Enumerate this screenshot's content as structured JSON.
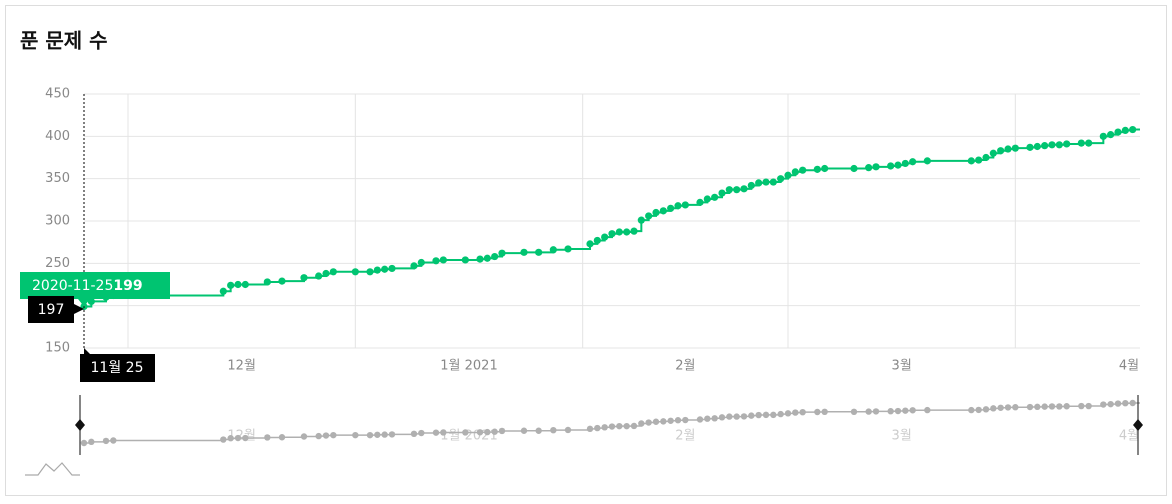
{
  "chart_data": {
    "type": "line",
    "title": "푼 문제 수",
    "x": [
      "2020-11-25",
      "2020-11-26",
      "2020-11-28",
      "2020-11-29",
      "2020-12-14",
      "2020-12-15",
      "2020-12-16",
      "2020-12-17",
      "2020-12-20",
      "2020-12-22",
      "2020-12-25",
      "2020-12-27",
      "2020-12-28",
      "2020-12-29",
      "2021-01-01",
      "2021-01-03",
      "2021-01-04",
      "2021-01-05",
      "2021-01-06",
      "2021-01-09",
      "2021-01-10",
      "2021-01-12",
      "2021-01-13",
      "2021-01-16",
      "2021-01-18",
      "2021-01-19",
      "2021-01-20",
      "2021-01-21",
      "2021-01-24",
      "2021-01-26",
      "2021-01-28",
      "2021-01-30",
      "2021-02-02",
      "2021-02-03",
      "2021-02-04",
      "2021-02-05",
      "2021-02-06",
      "2021-02-07",
      "2021-02-08",
      "2021-02-09",
      "2021-02-10",
      "2021-02-11",
      "2021-02-12",
      "2021-02-13",
      "2021-02-14",
      "2021-02-15",
      "2021-02-17",
      "2021-02-18",
      "2021-02-19",
      "2021-02-20",
      "2021-02-21",
      "2021-02-22",
      "2021-02-23",
      "2021-02-24",
      "2021-02-25",
      "2021-02-26",
      "2021-02-27",
      "2021-02-28",
      "2021-03-01",
      "2021-03-02",
      "2021-03-03",
      "2021-03-05",
      "2021-03-06",
      "2021-03-10",
      "2021-03-12",
      "2021-03-13",
      "2021-03-15",
      "2021-03-16",
      "2021-03-17",
      "2021-03-18",
      "2021-03-20",
      "2021-03-26",
      "2021-03-27",
      "2021-03-28",
      "2021-03-29",
      "2021-03-30",
      "2021-03-31",
      "2021-04-01",
      "2021-04-03",
      "2021-04-04",
      "2021-04-05",
      "2021-04-06",
      "2021-04-07",
      "2021-04-08",
      "2021-04-10",
      "2021-04-11",
      "2021-04-13",
      "2021-04-14",
      "2021-04-15",
      "2021-04-16",
      "2021-04-17"
    ],
    "series": [
      {
        "color": "#00c471",
        "values": [
          199,
          205,
          210,
          212,
          217,
          224,
          225,
          225,
          228,
          229,
          233,
          235,
          238,
          240,
          240,
          240,
          242,
          243,
          244,
          247,
          251,
          253,
          254,
          254,
          255,
          256,
          258,
          262,
          263,
          263,
          266,
          267,
          273,
          277,
          281,
          285,
          287,
          287,
          288,
          301,
          306,
          310,
          312,
          315,
          318,
          319,
          322,
          326,
          328,
          333,
          337,
          337,
          338,
          342,
          345,
          346,
          346,
          350,
          354,
          358,
          360,
          361,
          362,
          362,
          363,
          364,
          365,
          366,
          368,
          370,
          371,
          371,
          372,
          375,
          380,
          383,
          385,
          386,
          387,
          388,
          389,
          390,
          390,
          391,
          392,
          392,
          400,
          402,
          405,
          407,
          408
        ]
      }
    ],
    "xlim": [
      "2020-11-25",
      "2021-04-18"
    ],
    "xticks": [
      {
        "value": "2020-12-01",
        "label": "12월"
      },
      {
        "value": "2021-01-01",
        "label": "1월 2021"
      },
      {
        "value": "2021-02-01",
        "label": "2월"
      },
      {
        "value": "2021-03-01",
        "label": "3월"
      },
      {
        "value": "2021-04-01",
        "label": "4월"
      }
    ],
    "ylim": [
      150,
      450
    ],
    "yticks": [
      150,
      200,
      250,
      300,
      350,
      400,
      450
    ],
    "grid": true,
    "tooltip": {
      "date": "2020-11-25",
      "value": 199
    },
    "cursor": {
      "y_label": "197",
      "x_label": "11월 25"
    },
    "navigator": {
      "color": "#b0b0b0"
    }
  }
}
